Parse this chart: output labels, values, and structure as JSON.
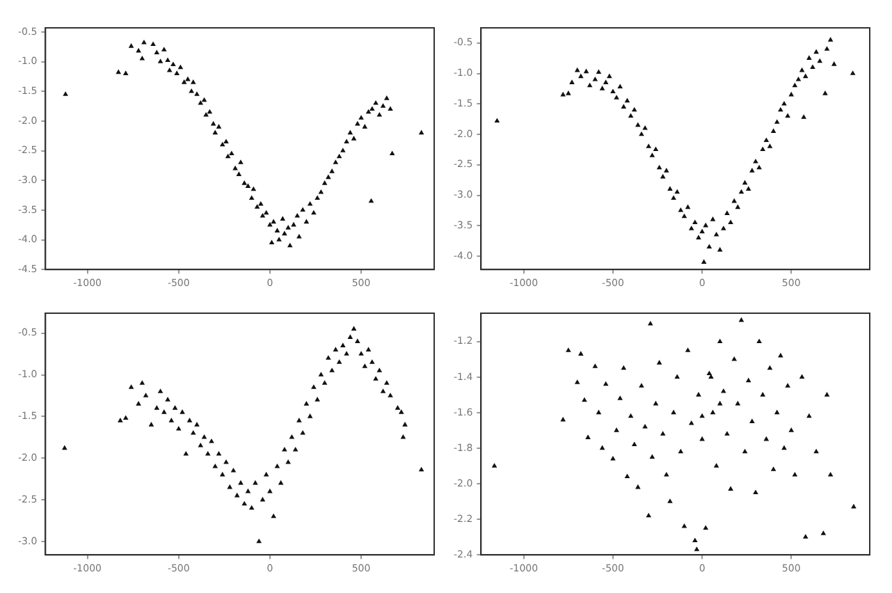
{
  "chart_data": [
    {
      "type": "scatter",
      "marker": "triangle",
      "grid": false,
      "xlim": [
        -1230,
        900
      ],
      "xticks": [
        -1000,
        -500,
        0,
        500
      ],
      "ylim": [
        -4.5,
        -0.43
      ],
      "yticks": [
        -0.5,
        {
          "value": -1,
          "label": "-1.0"
        },
        -1.5,
        {
          "value": -2,
          "label": "-2.0"
        },
        -2.5,
        {
          "value": -3,
          "label": "-3.0"
        },
        -3.5,
        {
          "value": -4,
          "label": "-4.0"
        },
        -4.5
      ],
      "series": [
        {
          "color": "#111111",
          "x": [
            -1120,
            -830,
            -790,
            -760,
            -720,
            -700,
            -690,
            -640,
            -620,
            -600,
            -580,
            -560,
            -550,
            -530,
            -510,
            -490,
            -470,
            -450,
            -430,
            -420,
            -400,
            -380,
            -360,
            -350,
            -330,
            -310,
            -300,
            -280,
            -260,
            -240,
            -230,
            -210,
            -190,
            -170,
            -160,
            -140,
            -120,
            -100,
            -90,
            -70,
            -50,
            -40,
            -20,
            0,
            10,
            20,
            40,
            50,
            70,
            80,
            100,
            110,
            130,
            150,
            160,
            180,
            200,
            220,
            240,
            260,
            280,
            300,
            320,
            340,
            360,
            380,
            400,
            420,
            440,
            460,
            480,
            500,
            520,
            540,
            560,
            580,
            600,
            620,
            640,
            660,
            670,
            555,
            830
          ],
          "values": [
            -1.55,
            -1.18,
            -1.2,
            -0.74,
            -0.82,
            -0.95,
            -0.68,
            -0.71,
            -0.85,
            -1.0,
            -0.8,
            -0.98,
            -1.15,
            -1.05,
            -1.2,
            -1.1,
            -1.35,
            -1.3,
            -1.5,
            -1.35,
            -1.55,
            -1.7,
            -1.65,
            -1.9,
            -1.85,
            -2.05,
            -2.2,
            -2.1,
            -2.4,
            -2.35,
            -2.6,
            -2.55,
            -2.8,
            -2.9,
            -2.7,
            -3.05,
            -3.1,
            -3.3,
            -3.15,
            -3.45,
            -3.4,
            -3.6,
            -3.55,
            -3.75,
            -4.05,
            -3.7,
            -3.85,
            -4.0,
            -3.65,
            -3.9,
            -3.8,
            -4.1,
            -3.75,
            -3.6,
            -3.95,
            -3.5,
            -3.7,
            -3.4,
            -3.55,
            -3.3,
            -3.2,
            -3.05,
            -2.95,
            -2.85,
            -2.7,
            -2.6,
            -2.5,
            -2.35,
            -2.2,
            -2.3,
            -2.05,
            -1.95,
            -2.1,
            -1.85,
            -1.8,
            -1.7,
            -1.9,
            -1.75,
            -1.62,
            -1.8,
            -2.55,
            -3.35,
            -2.2
          ]
        }
      ]
    },
    {
      "type": "scatter",
      "marker": "triangle",
      "grid": false,
      "xlim": [
        -1240,
        940
      ],
      "xticks": [
        -1000,
        -500,
        0,
        500
      ],
      "ylim": [
        -4.22,
        -0.25
      ],
      "yticks": [
        -0.5,
        {
          "value": -1,
          "label": "-1.0"
        },
        -1.5,
        {
          "value": -2,
          "label": "-2.0"
        },
        -2.5,
        {
          "value": -3,
          "label": "-3.0"
        },
        -3.5,
        {
          "value": -4,
          "label": "-4.0"
        }
      ],
      "series": [
        {
          "color": "#111111",
          "x": [
            -1150,
            -780,
            -750,
            -730,
            -700,
            -680,
            -650,
            -630,
            -600,
            -580,
            -560,
            -540,
            -520,
            -500,
            -480,
            -460,
            -440,
            -420,
            -400,
            -380,
            -360,
            -340,
            -320,
            -300,
            -280,
            -260,
            -240,
            -220,
            -200,
            -180,
            -160,
            -140,
            -120,
            -100,
            -80,
            -60,
            -40,
            -20,
            0,
            10,
            20,
            40,
            60,
            80,
            100,
            120,
            140,
            160,
            180,
            200,
            220,
            240,
            260,
            280,
            300,
            320,
            340,
            360,
            380,
            400,
            420,
            440,
            460,
            480,
            500,
            520,
            540,
            560,
            580,
            600,
            620,
            640,
            660,
            700,
            720,
            740,
            690,
            845,
            570
          ],
          "values": [
            -1.78,
            -1.35,
            -1.33,
            -1.15,
            -0.95,
            -1.05,
            -0.97,
            -1.2,
            -1.1,
            -0.98,
            -1.25,
            -1.15,
            -1.05,
            -1.3,
            -1.4,
            -1.22,
            -1.55,
            -1.45,
            -1.7,
            -1.6,
            -1.85,
            -2.0,
            -1.9,
            -2.2,
            -2.35,
            -2.25,
            -2.55,
            -2.7,
            -2.6,
            -2.9,
            -3.05,
            -2.95,
            -3.25,
            -3.35,
            -3.2,
            -3.55,
            -3.45,
            -3.7,
            -3.6,
            -4.1,
            -3.5,
            -3.85,
            -3.4,
            -3.65,
            -3.9,
            -3.55,
            -3.3,
            -3.45,
            -3.1,
            -3.2,
            -2.95,
            -2.8,
            -2.9,
            -2.6,
            -2.45,
            -2.55,
            -2.25,
            -2.1,
            -2.2,
            -1.95,
            -1.8,
            -1.6,
            -1.5,
            -1.7,
            -1.35,
            -1.2,
            -1.1,
            -0.95,
            -1.05,
            -0.75,
            -0.9,
            -0.65,
            -0.8,
            -0.6,
            -0.45,
            -0.85,
            -1.33,
            -1.0,
            -1.72
          ]
        }
      ]
    },
    {
      "type": "scatter",
      "marker": "triangle",
      "grid": false,
      "xlim": [
        -1230,
        900
      ],
      "xticks": [
        -1000,
        -500,
        0,
        500
      ],
      "ylim": [
        -3.16,
        -0.26
      ],
      "yticks": [
        -0.5,
        {
          "value": -1,
          "label": "-1.0"
        },
        -1.5,
        {
          "value": -2,
          "label": "-2.0"
        },
        -2.5,
        {
          "value": -3,
          "label": "-3.0"
        }
      ],
      "series": [
        {
          "color": "#111111",
          "x": [
            -1125,
            830,
            -820,
            -790,
            -760,
            -720,
            -700,
            -680,
            -650,
            -620,
            -600,
            -580,
            -560,
            -540,
            -520,
            -500,
            -480,
            -460,
            -440,
            -420,
            -400,
            -380,
            -360,
            -340,
            -320,
            -300,
            -280,
            -260,
            -240,
            -220,
            -200,
            -180,
            -160,
            -140,
            -120,
            -100,
            -80,
            -60,
            -40,
            -20,
            0,
            20,
            40,
            60,
            80,
            100,
            120,
            140,
            160,
            180,
            200,
            220,
            240,
            260,
            280,
            300,
            320,
            340,
            360,
            380,
            400,
            420,
            440,
            460,
            480,
            500,
            520,
            540,
            560,
            580,
            600,
            620,
            640,
            660,
            700,
            720,
            740,
            730
          ],
          "values": [
            -1.88,
            -2.14,
            -1.55,
            -1.52,
            -1.15,
            -1.35,
            -1.1,
            -1.25,
            -1.6,
            -1.4,
            -1.2,
            -1.45,
            -1.3,
            -1.55,
            -1.4,
            -1.65,
            -1.45,
            -1.95,
            -1.55,
            -1.7,
            -1.6,
            -1.85,
            -1.75,
            -1.95,
            -1.8,
            -2.1,
            -1.95,
            -2.2,
            -2.05,
            -2.35,
            -2.15,
            -2.45,
            -2.3,
            -2.55,
            -2.4,
            -2.6,
            -2.3,
            -3.0,
            -2.5,
            -2.2,
            -2.4,
            -2.7,
            -2.1,
            -2.3,
            -1.9,
            -2.05,
            -1.75,
            -1.9,
            -1.55,
            -1.7,
            -1.35,
            -1.5,
            -1.15,
            -1.3,
            -1.0,
            -1.1,
            -0.8,
            -0.95,
            -0.7,
            -0.85,
            -0.65,
            -0.75,
            -0.55,
            -0.45,
            -0.6,
            -0.75,
            -0.9,
            -0.7,
            -0.85,
            -1.05,
            -0.95,
            -1.2,
            -1.1,
            -1.25,
            -1.4,
            -1.45,
            -1.6,
            -1.75
          ]
        }
      ]
    },
    {
      "type": "scatter",
      "marker": "triangle",
      "grid": false,
      "xlim": [
        -1240,
        940
      ],
      "xticks": [
        -1000,
        -500,
        0,
        500
      ],
      "ylim": [
        -2.4,
        -1.04
      ],
      "yticks": [
        -1.2,
        -1.4,
        -1.6,
        -1.8,
        {
          "value": -2,
          "label": "-2.0"
        },
        -2.2,
        -2.4
      ],
      "series": [
        {
          "color": "#111111",
          "x": [
            -1165,
            850,
            -780,
            -750,
            -680,
            -700,
            -660,
            -640,
            -600,
            -580,
            -560,
            -540,
            -500,
            -480,
            -460,
            -440,
            -420,
            -400,
            -380,
            -360,
            -340,
            -320,
            -300,
            -290,
            -280,
            -260,
            -240,
            -220,
            -200,
            -180,
            -160,
            -140,
            -120,
            -100,
            -80,
            -60,
            -40,
            -20,
            0,
            20,
            40,
            60,
            80,
            100,
            120,
            140,
            160,
            180,
            200,
            220,
            240,
            260,
            280,
            300,
            320,
            340,
            360,
            380,
            400,
            420,
            440,
            460,
            480,
            500,
            520,
            560,
            580,
            600,
            640,
            680,
            700,
            720,
            -30,
            50,
            100,
            0
          ],
          "values": [
            -1.9,
            -2.13,
            -1.64,
            -1.25,
            -1.27,
            -1.43,
            -1.53,
            -1.74,
            -1.34,
            -1.6,
            -1.8,
            -1.44,
            -1.86,
            -1.7,
            -1.52,
            -1.35,
            -1.96,
            -1.62,
            -1.78,
            -2.02,
            -1.45,
            -1.68,
            -2.18,
            -1.1,
            -1.85,
            -1.55,
            -1.32,
            -1.72,
            -1.95,
            -2.1,
            -1.6,
            -1.4,
            -1.82,
            -2.24,
            -1.25,
            -1.66,
            -2.32,
            -1.5,
            -1.75,
            -2.25,
            -1.38,
            -1.6,
            -1.9,
            -1.2,
            -1.48,
            -1.72,
            -2.03,
            -1.3,
            -1.55,
            -1.08,
            -1.82,
            -1.42,
            -1.65,
            -2.05,
            -1.2,
            -1.5,
            -1.75,
            -1.35,
            -1.92,
            -1.6,
            -1.28,
            -1.8,
            -1.45,
            -1.7,
            -1.95,
            -1.4,
            -2.3,
            -1.62,
            -1.82,
            -2.28,
            -1.5,
            -1.95,
            -2.37,
            -1.4,
            -1.55,
            -1.62
          ]
        }
      ]
    }
  ]
}
